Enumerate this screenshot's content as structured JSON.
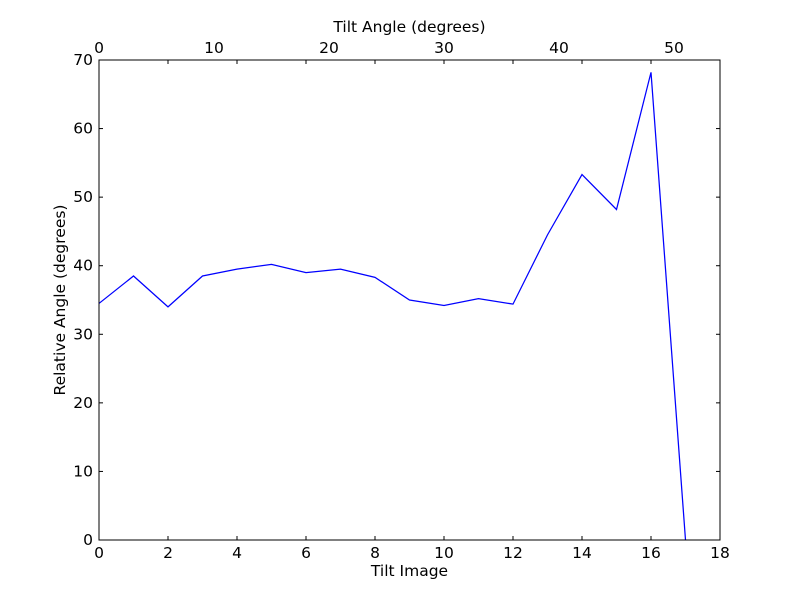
{
  "chart_data": {
    "type": "line",
    "title": "",
    "xlabel": "Tilt Image",
    "ylabel": "Relative Angle (degrees)",
    "top_xlabel": "Tilt Angle (degrees)",
    "xlim": [
      0,
      18
    ],
    "ylim": [
      0,
      70
    ],
    "top_xlim": [
      0,
      54
    ],
    "x_ticks": [
      "0",
      "2",
      "4",
      "6",
      "8",
      "10",
      "12",
      "14",
      "16",
      "18"
    ],
    "y_ticks": [
      "0",
      "10",
      "20",
      "30",
      "40",
      "50",
      "60",
      "70"
    ],
    "top_x_ticks": [
      "0",
      "10",
      "20",
      "30",
      "40",
      "50"
    ],
    "grid": false,
    "series": [
      {
        "color": "#0000ff",
        "x": [
          0,
          1,
          2,
          3,
          4,
          5,
          6,
          7,
          8,
          9,
          10,
          11,
          12,
          13,
          14,
          15,
          16,
          17
        ],
        "y": [
          34.5,
          38.5,
          34.0,
          38.5,
          39.5,
          40.2,
          39.0,
          39.5,
          38.3,
          35.0,
          34.2,
          35.2,
          34.4,
          44.5,
          53.3,
          48.2,
          68.2,
          0.0
        ]
      }
    ]
  }
}
